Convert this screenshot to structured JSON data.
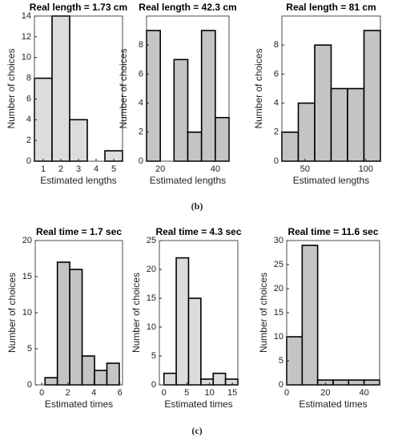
{
  "chart_data": [
    {
      "type": "histogram",
      "title": "Real length = 1.73 cm",
      "xlabel": "Estimated lengths",
      "ylabel": "Number of choices",
      "bins": [
        0.5,
        1.5,
        2.5,
        3.5,
        4.5,
        5.5
      ],
      "values": [
        8,
        14,
        4,
        0,
        1
      ],
      "color": "#dcdcdc",
      "xlim": [
        0.5,
        5.5
      ],
      "xticks": [
        1,
        2,
        3,
        4,
        5
      ],
      "ylim": [
        0,
        14
      ],
      "yticks": [
        0,
        2,
        4,
        6,
        8,
        10,
        12,
        14
      ]
    },
    {
      "type": "histogram",
      "title": "Real length = 42.3 cm",
      "xlabel": "Estimated lengths",
      "ylabel": "Number of choices",
      "bins": [
        15,
        20,
        25,
        30,
        35,
        40,
        45
      ],
      "values": [
        9,
        0,
        7,
        2,
        9,
        3
      ],
      "color": "#c4c4c4",
      "xlim": [
        15,
        45
      ],
      "xticks": [
        20,
        40
      ],
      "ylim": [
        0,
        10
      ],
      "yticks": [
        0,
        2,
        4,
        6,
        8
      ]
    },
    {
      "type": "histogram",
      "title": "Real length = 81 cm",
      "xlabel": "Estimated lengths",
      "ylabel": "Number of choices",
      "bins": [
        31,
        44.5,
        58,
        71.5,
        85,
        98.5,
        112
      ],
      "values": [
        2,
        4,
        8,
        5,
        5,
        9
      ],
      "color": "#c4c4c4",
      "xlim": [
        31,
        112
      ],
      "xticks": [
        50,
        100
      ],
      "ylim": [
        0,
        10
      ],
      "yticks": [
        0,
        2,
        4,
        6,
        8
      ]
    },
    {
      "type": "histogram",
      "title": "Real time = 1.7 sec",
      "xlabel": "Estimated times",
      "ylabel": "Number of choices",
      "bins": [
        0.25,
        1.2,
        2.15,
        3.1,
        4.05,
        5,
        5.95
      ],
      "values": [
        1,
        17,
        16,
        4,
        2,
        3
      ],
      "color": "#c4c4c4",
      "xlim": [
        -0.5,
        6.2
      ],
      "xticks": [
        0,
        2,
        4,
        6
      ],
      "ylim": [
        0,
        20
      ],
      "yticks": [
        0,
        5,
        10,
        15,
        20
      ]
    },
    {
      "type": "histogram",
      "title": "Real time = 4.3 sec",
      "xlabel": "Estimated times",
      "ylabel": "Number of choices",
      "bins": [
        0,
        2.7,
        5.4,
        8.1,
        10.8,
        13.5,
        16.2
      ],
      "values": [
        2,
        22,
        15,
        1,
        2,
        1
      ],
      "color": "#dcdcdc",
      "xlim": [
        -1,
        16.2
      ],
      "xticks": [
        0,
        5,
        10,
        15
      ],
      "ylim": [
        0,
        25
      ],
      "yticks": [
        0,
        5,
        10,
        15,
        20,
        25
      ]
    },
    {
      "type": "histogram",
      "title": "Real time = 11.6 sec",
      "xlabel": "Estimated times",
      "ylabel": "Number of choices",
      "bins": [
        0,
        8,
        16,
        24,
        32,
        40,
        48
      ],
      "values": [
        10,
        29,
        1,
        1,
        1,
        1
      ],
      "color": "#c4c4c4",
      "xlim": [
        0,
        48
      ],
      "xticks": [
        0,
        20,
        40
      ],
      "ylim": [
        0,
        30
      ],
      "yticks": [
        0,
        5,
        10,
        15,
        20,
        25,
        30
      ]
    }
  ],
  "captions": [
    "(b)",
    "(c)"
  ]
}
